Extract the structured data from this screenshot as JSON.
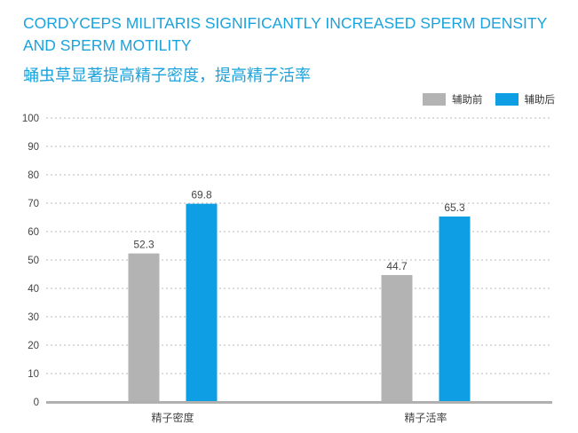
{
  "title_en": "CORDYCEPS MILITARIS SIGNIFICANTLY INCREASED SPERM DENSITY AND SPERM MOTILITY",
  "title_zh": "蛹虫草显著提高精子密度，提高精子活率",
  "colors": {
    "title": "#1aa3dd",
    "before": "#b3b3b3",
    "after": "#0d9ee3",
    "axis": "#b0b0b0",
    "text": "#444444"
  },
  "chart_data": {
    "type": "bar",
    "categories": [
      "精子密度",
      "精子活率"
    ],
    "series": [
      {
        "name": "辅助前",
        "values": [
          52.3,
          44.7
        ]
      },
      {
        "name": "辅助后",
        "values": [
          69.8,
          65.3
        ]
      }
    ],
    "ylim": [
      0,
      100
    ],
    "yticks": [
      0,
      10,
      20,
      30,
      40,
      50,
      60,
      70,
      80,
      90,
      100
    ],
    "grid": true,
    "legend_position": "top-right"
  }
}
